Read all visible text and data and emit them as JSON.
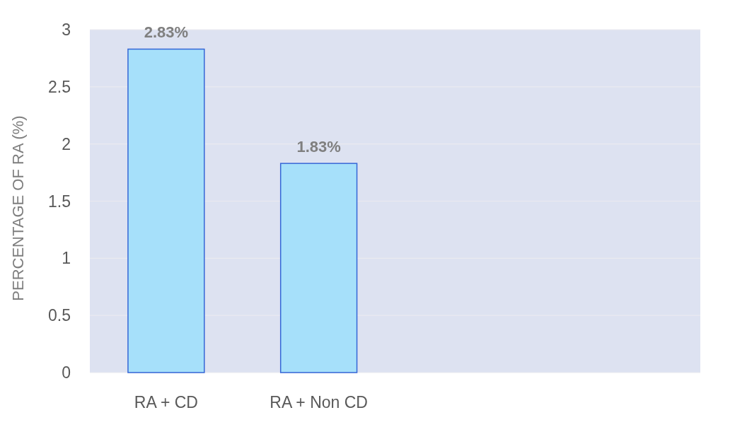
{
  "chart_data": {
    "type": "bar",
    "categories": [
      "RA + CD",
      "RA + Non CD",
      null,
      null
    ],
    "values": [
      2.83,
      1.83,
      null,
      null
    ],
    "value_labels": [
      "2.83%",
      "1.83%",
      null,
      null
    ],
    "color": "#a6e0fa",
    "ylabel": "PERCENTAGE OF RA (%)",
    "ylim": [
      0,
      3
    ],
    "yticks": [
      0,
      0.5,
      1,
      1.5,
      2,
      2.5,
      3
    ],
    "grid": "y"
  }
}
